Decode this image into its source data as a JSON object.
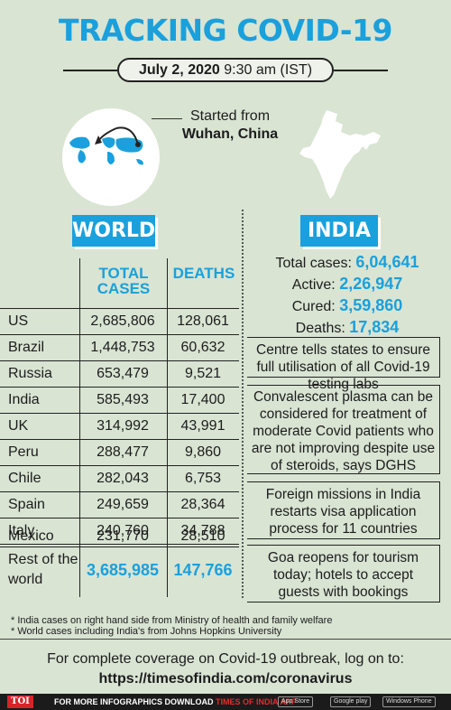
{
  "header": {
    "title": "TRACKING COVID-19",
    "date": "July 2, 2020",
    "time": "9:30 am (IST)"
  },
  "origin": {
    "label": "Started from",
    "place": "Wuhan, China"
  },
  "world": {
    "heading": "WORLD",
    "columns": {
      "total": "TOTAL CASES",
      "deaths": "DEATHS"
    },
    "rows": [
      {
        "country": "US",
        "total": "2,685,806",
        "deaths": "128,061"
      },
      {
        "country": "Brazil",
        "total": "1,448,753",
        "deaths": "60,632"
      },
      {
        "country": "Russia",
        "total": "653,479",
        "deaths": "9,521"
      },
      {
        "country": "India",
        "total": "585,493",
        "deaths": "17,400"
      },
      {
        "country": "UK",
        "total": "314,992",
        "deaths": "43,991"
      },
      {
        "country": "Peru",
        "total": "288,477",
        "deaths": "9,860"
      },
      {
        "country": "Chile",
        "total": "282,043",
        "deaths": "6,753"
      },
      {
        "country": "Spain",
        "total": "249,659",
        "deaths": "28,364"
      },
      {
        "country": "Italy",
        "total": "240,760",
        "deaths": "34,788"
      },
      {
        "country": "Mexico",
        "total": "231,770",
        "deaths": "28,510"
      }
    ],
    "rest": {
      "country": "Rest of the world",
      "total": "3,685,985",
      "deaths": "147,766"
    }
  },
  "india": {
    "heading": "INDIA",
    "stats": [
      {
        "label": "Total cases:",
        "value": "6,04,641"
      },
      {
        "label": "Active:",
        "value": "2,26,947"
      },
      {
        "label": "Cured:",
        "value": "3,59,860"
      },
      {
        "label": "Deaths:",
        "value": "17,834"
      }
    ],
    "news": [
      "Centre tells states to ensure full utilisation of all Covid-19 testing labs",
      "Convalescent plasma can be considered for treatment of moderate Covid patients who are not improving despite use of steroids, says DGHS",
      "Foreign missions in India restarts visa application process for 11 countries",
      "Goa reopens for tourism today; hotels to accept guests with bookings"
    ]
  },
  "footnotes": [
    "* India cases on right hand side from Ministry of health and family welfare",
    "* World cases including India's from Johns Hopkins University"
  ],
  "coverage": {
    "text": "For complete coverage on Covid-19 outbreak, log on to:",
    "url": "https://timesofindia.com/coronavirus"
  },
  "bottom_bar": {
    "logo": "TOI",
    "promo_prefix": "FOR MORE INFOGRAPHICS DOWNLOAD",
    "promo_app": "TIMES OF INDIA APP",
    "stores": [
      "App Store",
      "Google play",
      "Windows Phone"
    ]
  },
  "colors": {
    "accent": "#1aa0dc",
    "background": "#d9e4d3",
    "logo_red": "#d8232a"
  }
}
